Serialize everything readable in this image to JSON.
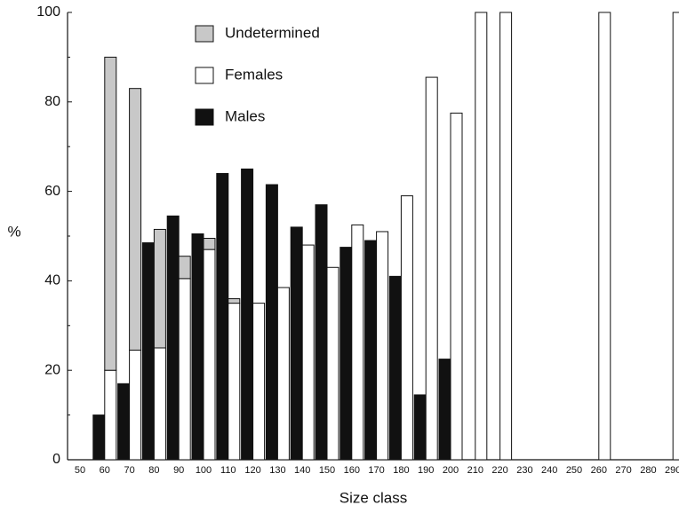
{
  "chart_data": {
    "type": "bar",
    "xlabel": "Size class",
    "ylabel": "%",
    "categories": [
      "50",
      "60",
      "70",
      "80",
      "90",
      "100",
      "110",
      "120",
      "130",
      "140",
      "150",
      "160",
      "170",
      "180",
      "190",
      "200",
      "210",
      "220",
      "230",
      "240",
      "250",
      "260",
      "270",
      "280",
      "290"
    ],
    "series": [
      {
        "name": "Males",
        "color": "#111111",
        "offset": "left",
        "values": [
          0,
          10,
          17,
          48.5,
          54.5,
          50.5,
          64,
          65,
          61.5,
          52,
          57,
          47.5,
          49,
          41,
          14.5,
          22.5,
          0,
          0,
          0,
          0,
          0,
          0,
          0,
          0,
          0
        ]
      },
      {
        "name": "Females",
        "color": "#ffffff",
        "offset": "right",
        "values": [
          0,
          20,
          24.5,
          25,
          40.5,
          47,
          35,
          35,
          38.5,
          48,
          43,
          52.5,
          51,
          59,
          85.5,
          77.5,
          100,
          100,
          0,
          0,
          0,
          100,
          0,
          0,
          100
        ]
      },
      {
        "name": "Undetermined",
        "color": "#c8c8c8",
        "offset": "right",
        "values": [
          0,
          70,
          58.5,
          26.5,
          5,
          2.5,
          1,
          0,
          0,
          0,
          0,
          0,
          0,
          0,
          0,
          0,
          0,
          0,
          0,
          0,
          0,
          0,
          0,
          0,
          0
        ]
      }
    ],
    "ylim": [
      0,
      100
    ],
    "yticks": [
      0,
      20,
      40,
      60,
      80,
      100
    ],
    "yminorticks": [
      10,
      30,
      50,
      70,
      90
    ]
  }
}
